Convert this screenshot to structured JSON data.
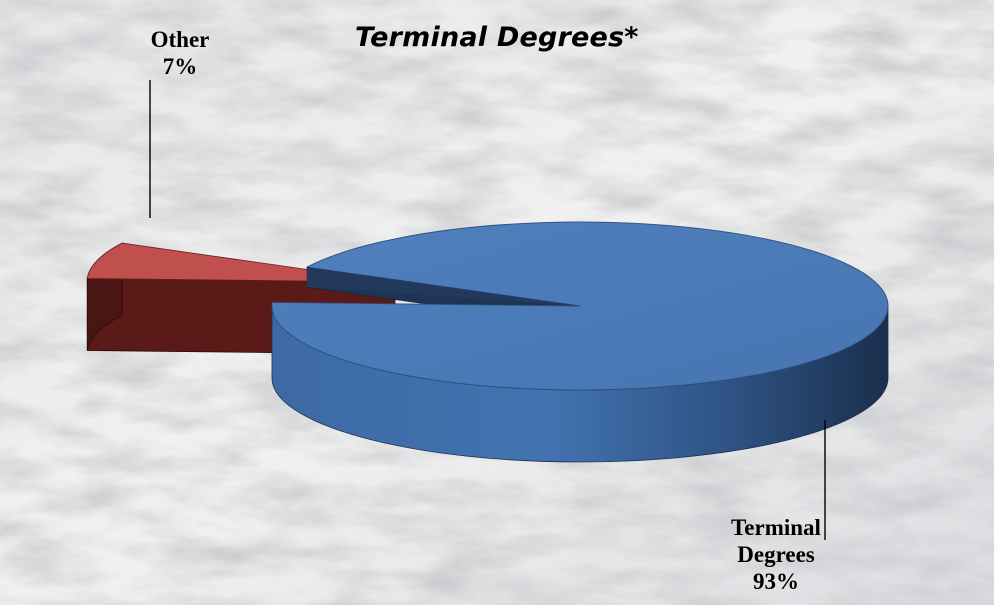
{
  "chart_data": {
    "type": "pie",
    "title": "Terminal Degrees*",
    "categories": [
      "Terminal Degrees",
      "Other"
    ],
    "values": [
      93,
      7
    ],
    "value_labels": [
      "93%",
      "7%"
    ],
    "label_lines": [
      [
        "Terminal",
        "Degrees"
      ],
      [
        "Other"
      ]
    ],
    "colors": [
      "#4a7ab8",
      "#c0504d"
    ],
    "three_d": true,
    "exploded": "Other",
    "legend": "none"
  },
  "colors": {
    "blue_top": "#4a7ab8",
    "blue_side": "#3a659e",
    "blue_side_dark": "#1d3452",
    "red_top": "#c0504d",
    "red_side": "#5a1a18"
  }
}
